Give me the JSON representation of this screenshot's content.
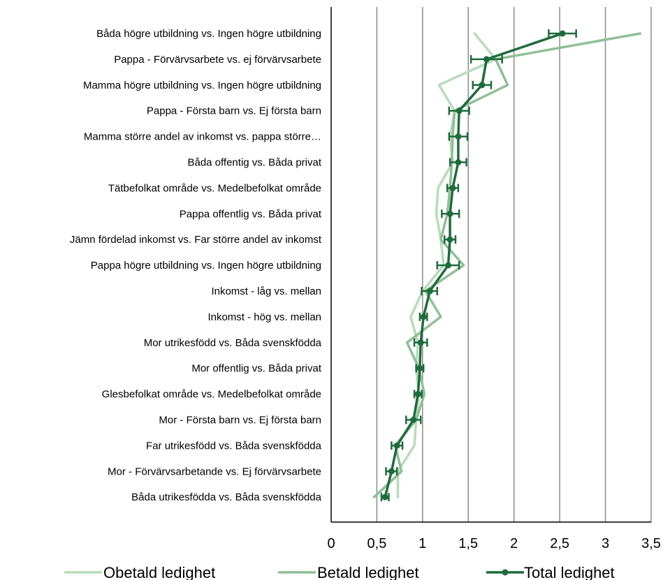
{
  "chart_data": {
    "type": "line",
    "orientation": "horizontal",
    "title": "",
    "xlabel": "",
    "ylabel": "",
    "xlim": [
      0,
      3.5
    ],
    "x_ticks": [
      0,
      0.5,
      1,
      1.5,
      2,
      2.5,
      3,
      3.5
    ],
    "x_tick_labels": [
      "0",
      "0,5",
      "1",
      "1,5",
      "2",
      "2,5",
      "3",
      "3,5"
    ],
    "grid": "vertical",
    "legend_position": "bottom",
    "categories": [
      "Båda högre utbildning vs. Ingen högre utbildning",
      "Pappa - Förvärvsarbete vs. ej förvärvsarbete",
      "Mamma högre utbildning vs. Ingen högre utbildning",
      "Pappa - Första barn vs. Ej första barn",
      "Mamma större andel av inkomst vs. pappa större…",
      "Båda offentig vs. Båda privat",
      "Tätbefolkat område  vs. Medelbefolkat område",
      "Pappa offentlig vs. Båda privat",
      "Jämn fördelad inkomst vs. Far större andel av inkomst",
      "Pappa högre utbildning  vs. Ingen högre utbildning",
      "Inkomst - låg vs. mellan",
      "Inkomst - hög vs. mellan",
      "Mor utrikesfödd vs. Båda svenskfödda",
      "Mor offentlig vs. Båda privat",
      "Glesbefolkat område vs. Medelbefolkat område",
      "Mor -  Första barn vs. Ej första barn",
      "Far utrikesfödd vs. Båda svenskfödda",
      "Mor - Förvärvsarbetande vs. Ej förvärvsarbete",
      "Båda utrikesfödda vs. Båda svenskfödda"
    ],
    "series": [
      {
        "name": "Obetald ledighet",
        "color": "#b9dbb9",
        "values": [
          1.57,
          1.8,
          1.18,
          1.35,
          1.3,
          1.33,
          1.17,
          1.15,
          1.2,
          1.23,
          1.0,
          0.87,
          0.95,
          0.93,
          0.96,
          0.93,
          0.91,
          0.73,
          0.73
        ]
      },
      {
        "name": "Betald ledighet",
        "color": "#8fbf96",
        "values": [
          3.38,
          1.8,
          1.93,
          1.35,
          1.33,
          1.32,
          1.3,
          1.27,
          1.2,
          1.45,
          1.03,
          1.2,
          0.83,
          0.96,
          1.02,
          0.93,
          0.7,
          0.77,
          0.47
        ]
      },
      {
        "name": "Total ledighet",
        "color": "#1e6b3c",
        "values": [
          2.53,
          1.7,
          1.65,
          1.4,
          1.39,
          1.39,
          1.33,
          1.3,
          1.3,
          1.28,
          1.08,
          1.01,
          0.98,
          0.97,
          0.95,
          0.9,
          0.72,
          0.66,
          0.59
        ],
        "ci_low": [
          2.38,
          1.53,
          1.55,
          1.29,
          1.29,
          1.3,
          1.27,
          1.21,
          1.24,
          1.16,
          0.99,
          0.97,
          0.91,
          0.93,
          0.91,
          0.82,
          0.66,
          0.6,
          0.55
        ],
        "ci_high": [
          2.68,
          1.87,
          1.75,
          1.51,
          1.49,
          1.48,
          1.39,
          1.4,
          1.36,
          1.4,
          1.16,
          1.05,
          1.05,
          1.01,
          0.99,
          0.98,
          0.78,
          0.72,
          0.63
        ]
      }
    ]
  }
}
